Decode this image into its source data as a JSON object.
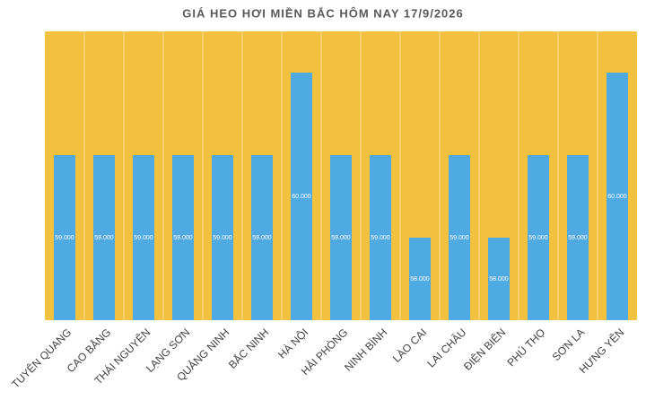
{
  "chart_data": {
    "type": "bar",
    "title": "GIÁ HEO HƠI MIỀN BẮC HÔM NAY 17/9/2026",
    "categories": [
      "TUYÊN QUANG",
      "CAO BẰNG",
      "THÁI NGUYÊN",
      "LẠNG SƠN",
      "QUẢNG NINH",
      "BẮC NINH",
      "HÀ NỘI",
      "HẢI PHÒNG",
      "NINH BÌNH",
      "LÀO CAI",
      "LAI CHÂU",
      "ĐIỆN BIÊN",
      "PHÚ THỌ",
      "SƠN LA",
      "HƯNG YÊN"
    ],
    "values": [
      59000,
      59000,
      59000,
      59000,
      59000,
      59000,
      60000,
      59000,
      59000,
      58000,
      59000,
      58000,
      59000,
      59000,
      60000
    ],
    "value_labels": [
      "59.000",
      "59.000",
      "59.000",
      "59.000",
      "59.000",
      "59.000",
      "60.000",
      "59.000",
      "59.000",
      "58.000",
      "59.000",
      "58.000",
      "59.000",
      "59.000",
      "60.000"
    ],
    "color": "#4faae4",
    "background": "#f2c140",
    "ylim": [
      57000,
      60500
    ]
  }
}
